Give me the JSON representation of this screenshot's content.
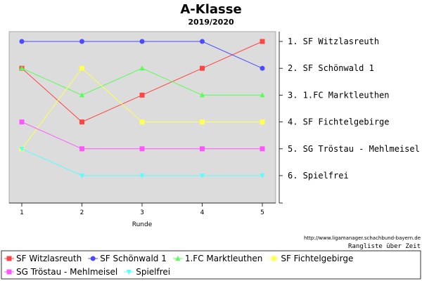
{
  "chart_data": {
    "type": "line",
    "title": "A-Klasse",
    "subtitle": "2019/2020",
    "xlabel": "Runde",
    "ylabel": "",
    "x": [
      1,
      2,
      3,
      4,
      5
    ],
    "ylim": [
      1,
      6
    ],
    "y_inverted": true,
    "grid": false,
    "legend_position": "bottom",
    "rank_labels": [
      "1. SF Witzlasreuth",
      "2. SF Schönwald 1",
      "3. 1.FC Marktleuthen",
      "4. SF Fichtelgebirge",
      "5. SG Tröstau - Mehlmeisel",
      "6. Spielfrei"
    ],
    "series": [
      {
        "name": "SF Witzlasreuth",
        "values": [
          2,
          4,
          3,
          2,
          1
        ],
        "color": "#ff4444",
        "marker": "square"
      },
      {
        "name": "SF Schönwald 1",
        "values": [
          1,
          1,
          1,
          1,
          2
        ],
        "color": "#4a4aff",
        "marker": "circle"
      },
      {
        "name": "1.FC Marktleuthen",
        "values": [
          2,
          3,
          2,
          3,
          3
        ],
        "color": "#55ff55",
        "marker": "triangle-up"
      },
      {
        "name": "SF Fichtelgebirge",
        "values": [
          5,
          2,
          4,
          4,
          4
        ],
        "color": "#ffff55",
        "marker": "square"
      },
      {
        "name": "SG Tröstau - Mehlmeisel",
        "values": [
          4,
          5,
          5,
          5,
          5
        ],
        "color": "#ff55ff",
        "marker": "square"
      },
      {
        "name": "Spielfrei",
        "values": [
          5,
          6,
          6,
          6,
          6
        ],
        "color": "#55ffff",
        "marker": "triangle-down"
      }
    ]
  },
  "footer": {
    "url": "http://www.ligamanager.schachbund-bayern.de",
    "subtitle": "Rangliste über Zeit"
  }
}
